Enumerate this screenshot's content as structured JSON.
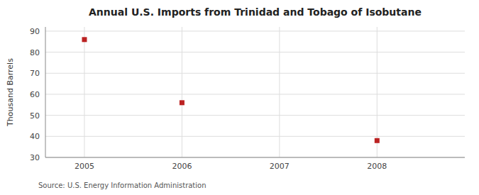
{
  "chart_data": {
    "type": "scatter",
    "title": "Annual U.S. Imports from Trinidad and Tobago of Isobutane",
    "ylabel": "Thousand Barrels",
    "source": "Source: U.S. Energy Information Administration",
    "x": [
      2005,
      2006,
      2008
    ],
    "values": [
      86,
      56,
      38
    ],
    "xlim": [
      2004.6,
      2008.9
    ],
    "ylim": [
      30,
      92
    ],
    "xticks": [
      2005,
      2006,
      2007,
      2008
    ],
    "yticks": [
      30,
      40,
      50,
      60,
      70,
      80,
      90
    ],
    "color": "#bb2222",
    "marker": "square",
    "grid": true
  }
}
